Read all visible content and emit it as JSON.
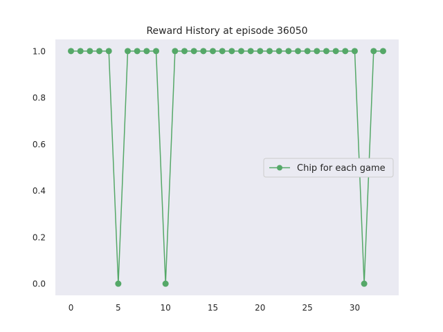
{
  "chart_data": {
    "type": "line",
    "title": "Reward History at episode 36050",
    "xlabel": "",
    "ylabel": "",
    "x": [
      0,
      1,
      2,
      3,
      4,
      5,
      6,
      7,
      8,
      9,
      10,
      11,
      12,
      13,
      14,
      15,
      16,
      17,
      18,
      19,
      20,
      21,
      22,
      23,
      24,
      25,
      26,
      27,
      28,
      29,
      30,
      31,
      32,
      33
    ],
    "series": [
      {
        "name": "Chip for each game",
        "color": "#55a868",
        "marker": "circle",
        "values": [
          1,
          1,
          1,
          1,
          1,
          0,
          1,
          1,
          1,
          1,
          0,
          1,
          1,
          1,
          1,
          1,
          1,
          1,
          1,
          1,
          1,
          1,
          1,
          1,
          1,
          1,
          1,
          1,
          1,
          1,
          1,
          0,
          1,
          1
        ]
      }
    ],
    "xlim": [
      -1.65,
      34.65
    ],
    "ylim": [
      -0.05,
      1.05
    ],
    "xticks": [
      0,
      5,
      10,
      15,
      20,
      25,
      30
    ],
    "yticks": [
      0.0,
      0.2,
      0.4,
      0.6,
      0.8,
      1.0
    ],
    "xtick_labels": [
      "0",
      "5",
      "10",
      "15",
      "20",
      "25",
      "30"
    ],
    "ytick_labels": [
      "0.0",
      "0.2",
      "0.4",
      "0.6",
      "0.8",
      "1.0"
    ],
    "grid": false,
    "legend_position": "center-right",
    "background_color": "#eaeaf2"
  }
}
